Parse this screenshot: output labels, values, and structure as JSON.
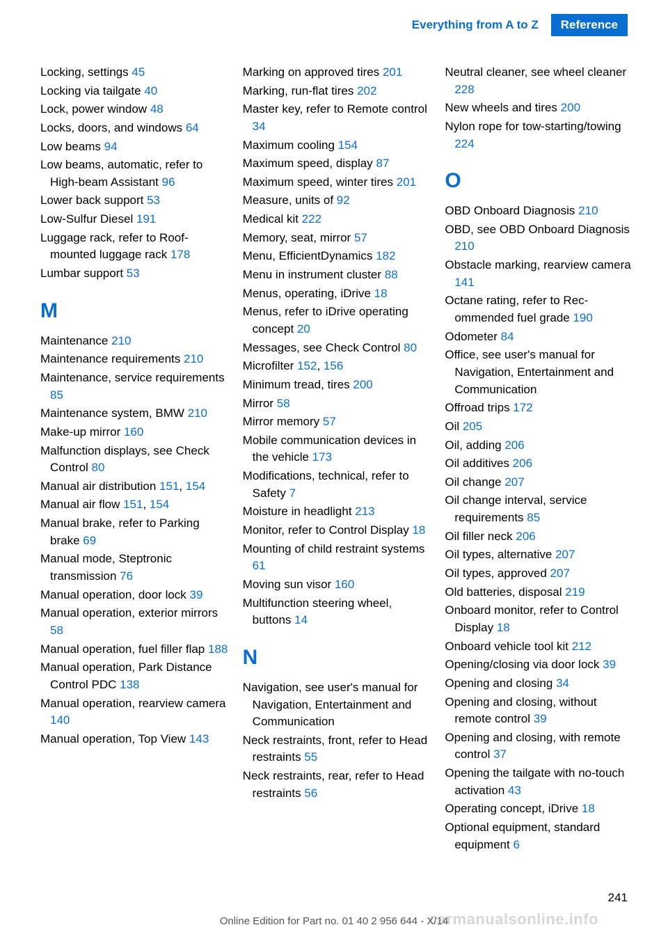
{
  "header": {
    "left": "Everything from A to Z",
    "right": "Reference",
    "left_color": "#0a6ed1",
    "right_bg": "#0a6ed1",
    "right_color": "#ffffff"
  },
  "link_color": "#0a6ed1",
  "columns": [
    {
      "items": [
        {
          "text": "Locking, settings ",
          "page": "45"
        },
        {
          "text": "Locking via tailgate ",
          "page": "40"
        },
        {
          "text": "Lock, power window ",
          "page": "48"
        },
        {
          "text": "Locks, doors, and win­dows ",
          "page": "64"
        },
        {
          "text": "Low beams ",
          "page": "94"
        },
        {
          "text": "Low beams, automatic, refer to High-beam Assistant ",
          "page": "96"
        },
        {
          "text": "Lower back support ",
          "page": "53"
        },
        {
          "text": "Low-Sulfur Diesel ",
          "page": "191"
        },
        {
          "text": "Luggage rack, refer to Roof-mounted luggage rack ",
          "page": "178"
        },
        {
          "text": "Lumbar support ",
          "page": "53"
        },
        {
          "letter": "M"
        },
        {
          "text": "Maintenance ",
          "page": "210"
        },
        {
          "text": "Maintenance require­ments ",
          "page": "210"
        },
        {
          "text": "Maintenance, service require­ments ",
          "page": "85"
        },
        {
          "text": "Maintenance system, BMW ",
          "page": "210"
        },
        {
          "text": "Make-up mirror ",
          "page": "160"
        },
        {
          "text": "Malfunction displays, see Check Control ",
          "page": "80"
        },
        {
          "text": "Manual air distribu­tion ",
          "page": "151",
          "extra": ", ",
          "page2": "154"
        },
        {
          "text": "Manual air flow ",
          "page": "151",
          "extra": ", ",
          "page2": "154"
        },
        {
          "text": "Manual brake, refer to Parking brake ",
          "page": "69"
        },
        {
          "text": "Manual mode, Steptronic transmission ",
          "page": "76"
        },
        {
          "text": "Manual operation, door lock ",
          "page": "39"
        },
        {
          "text": "Manual operation, exterior mirrors ",
          "page": "58"
        },
        {
          "text": "Manual operation, fuel filler flap ",
          "page": "188"
        },
        {
          "text": "Manual operation, Park Dis­tance Control PDC ",
          "page": "138"
        },
        {
          "text": "Manual operation, rearview camera ",
          "page": "140"
        },
        {
          "text": "Manual operation, Top View ",
          "page": "143"
        }
      ]
    },
    {
      "items": [
        {
          "text": "Marking on approved tires ",
          "page": "201"
        },
        {
          "text": "Marking, run-flat tires ",
          "page": "202"
        },
        {
          "text": "Master key, refer to Remote control ",
          "page": "34"
        },
        {
          "text": "Maximum cooling ",
          "page": "154"
        },
        {
          "text": "Maximum speed, display ",
          "page": "87"
        },
        {
          "text": "Maximum speed, winter tires ",
          "page": "201"
        },
        {
          "text": "Measure, units of ",
          "page": "92"
        },
        {
          "text": "Medical kit ",
          "page": "222"
        },
        {
          "text": "Memory, seat, mirror ",
          "page": "57"
        },
        {
          "text": "Menu, EfficientDynamics ",
          "page": "182"
        },
        {
          "text": "Menu in instrument clus­ter ",
          "page": "88"
        },
        {
          "text": "Menus, operating, iDrive ",
          "page": "18"
        },
        {
          "text": "Menus, refer to iDrive operat­ing concept ",
          "page": "20"
        },
        {
          "text": "Messages, see Check Con­trol ",
          "page": "80"
        },
        {
          "text": "Microfilter ",
          "page": "152",
          "extra": ", ",
          "page2": "156"
        },
        {
          "text": "Minimum tread, tires ",
          "page": "200"
        },
        {
          "text": "Mirror ",
          "page": "58"
        },
        {
          "text": "Mirror memory ",
          "page": "57"
        },
        {
          "text": "Mobile communication devi­ces in the vehicle ",
          "page": "173"
        },
        {
          "text": "Modifications, technical, refer to Safety ",
          "page": "7"
        },
        {
          "text": "Moisture in headlight ",
          "page": "213"
        },
        {
          "text": "Monitor, refer to Control Dis­play ",
          "page": "18"
        },
        {
          "text": "Mounting of child restraint systems ",
          "page": "61"
        },
        {
          "text": "Moving sun visor ",
          "page": "160"
        },
        {
          "text": "Multifunction steering wheel, buttons ",
          "page": "14"
        },
        {
          "letter": "N"
        },
        {
          "text": "Navigation, see user's manual for Navigation, Entertain­ment and Communication"
        },
        {
          "text": "Neck restraints, front, refer to Head restraints ",
          "page": "55"
        },
        {
          "text": "Neck restraints, rear, refer to Head restraints ",
          "page": "56"
        }
      ]
    },
    {
      "items": [
        {
          "text": "Neutral cleaner, see wheel cleaner ",
          "page": "228"
        },
        {
          "text": "New wheels and tires ",
          "page": "200"
        },
        {
          "text": "Nylon rope for tow-starting/towing ",
          "page": "224"
        },
        {
          "letter": "O"
        },
        {
          "text": "OBD Onboard Diagnosis ",
          "page": "210"
        },
        {
          "text": "OBD, see OBD Onboard Di­agnosis ",
          "page": "210"
        },
        {
          "text": "Obstacle marking, rearview camera ",
          "page": "141"
        },
        {
          "text": "Octane rating, refer to Rec­ommended fuel grade ",
          "page": "190"
        },
        {
          "text": "Odometer ",
          "page": "84"
        },
        {
          "text": "Office, see user's manual for Navigation, Entertainment and Communication"
        },
        {
          "text": "Offroad trips ",
          "page": "172"
        },
        {
          "text": "Oil ",
          "page": "205"
        },
        {
          "text": "Oil, adding ",
          "page": "206"
        },
        {
          "text": "Oil additives ",
          "page": "206"
        },
        {
          "text": "Oil change ",
          "page": "207"
        },
        {
          "text": "Oil change interval, service requirements ",
          "page": "85"
        },
        {
          "text": "Oil filler neck ",
          "page": "206"
        },
        {
          "text": "Oil types, alternative ",
          "page": "207"
        },
        {
          "text": "Oil types, approved ",
          "page": "207"
        },
        {
          "text": "Old batteries, disposal ",
          "page": "219"
        },
        {
          "text": "Onboard monitor, refer to Control Display ",
          "page": "18"
        },
        {
          "text": "Onboard vehicle tool kit ",
          "page": "212"
        },
        {
          "text": "Opening/closing via door lock ",
          "page": "39"
        },
        {
          "text": "Opening and closing ",
          "page": "34"
        },
        {
          "text": "Opening and closing, without remote control ",
          "page": "39"
        },
        {
          "text": "Opening and closing, with re­mote control ",
          "page": "37"
        },
        {
          "text": "Opening the tailgate with no-touch activation ",
          "page": "43"
        },
        {
          "text": "Operating concept, iDrive ",
          "page": "18"
        },
        {
          "text": "Optional equipment, standard equipment ",
          "page": "6"
        }
      ]
    }
  ],
  "page_number": "241",
  "footer": "Online Edition for Part no. 01 40 2 956 644 - X/14",
  "watermark": "carmanualsonline.info"
}
